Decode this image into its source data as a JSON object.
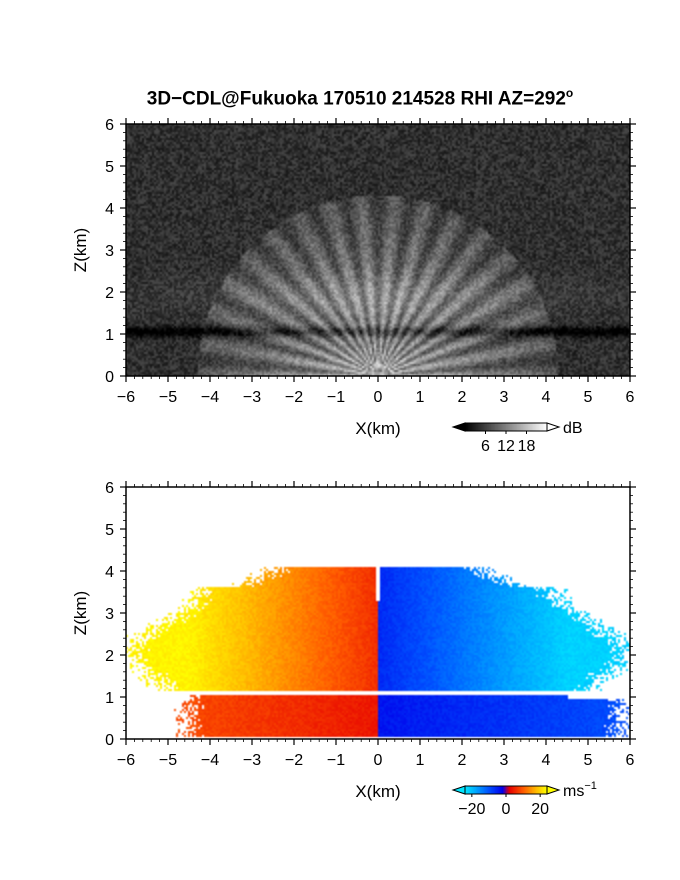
{
  "title": {
    "main": "3D−CDL@Fukuoka 170510 214528 RHI AZ=292",
    "sup": "o"
  },
  "chart_data": [
    {
      "type": "heatmap",
      "panel": "top",
      "title": "3D−CDL@Fukuoka 170510 214528 RHI AZ=292°",
      "xlabel": "X(km)",
      "ylabel": "Z(km)",
      "xlim": [
        -6,
        6
      ],
      "ylim": [
        0,
        6
      ],
      "xticks": [
        "−6",
        "−5",
        "−4",
        "−3",
        "−2",
        "−1",
        "0",
        "1",
        "2",
        "3",
        "4",
        "5",
        "6"
      ],
      "yticks": [
        "0",
        "1",
        "2",
        "3",
        "4",
        "5",
        "6"
      ],
      "colorbar": {
        "label": "dB",
        "ticks": [
          "6",
          "12",
          "18"
        ],
        "values": [
          6,
          12,
          18
        ],
        "range": [
          0,
          24
        ],
        "colormap": "grayscale"
      },
      "features": [
        {
          "name": "noise-background",
          "value_db": 3
        },
        {
          "name": "fan-of-bright-beams",
          "origin": [
            0,
            0
          ],
          "radius_km": 4.2,
          "max_db": 20
        },
        {
          "name": "dark-attenuation-layer",
          "z_km": 1.0,
          "x_range": [
            -6,
            6
          ]
        }
      ]
    },
    {
      "type": "heatmap",
      "panel": "bottom",
      "xlabel": "X(km)",
      "ylabel": "Z(km)",
      "xlim": [
        -6,
        6
      ],
      "ylim": [
        0,
        6
      ],
      "xticks": [
        "−6",
        "−5",
        "−4",
        "−3",
        "−2",
        "−1",
        "0",
        "1",
        "2",
        "3",
        "4",
        "5",
        "6"
      ],
      "yticks": [
        "0",
        "1",
        "2",
        "3",
        "4",
        "5",
        "6"
      ],
      "colorbar": {
        "label": "ms",
        "label_sup": "−1",
        "ticks": [
          "−20",
          "0",
          "20"
        ],
        "values": [
          -20,
          0,
          20
        ],
        "range": [
          -24,
          24
        ],
        "colormap": "cyan-blue-red-yellow"
      },
      "features": [
        {
          "name": "negative-velocity-region",
          "x_range": [
            -6,
            0
          ],
          "z_range": [
            0,
            4.1
          ],
          "sign": "positive-left"
        },
        {
          "name": "positive-velocity-region",
          "x_range": [
            0,
            6
          ],
          "z_range": [
            0,
            4.1
          ],
          "sign": "negative-right"
        },
        {
          "name": "no-data-gap",
          "z_range": [
            1.05,
            1.15
          ]
        }
      ]
    }
  ]
}
